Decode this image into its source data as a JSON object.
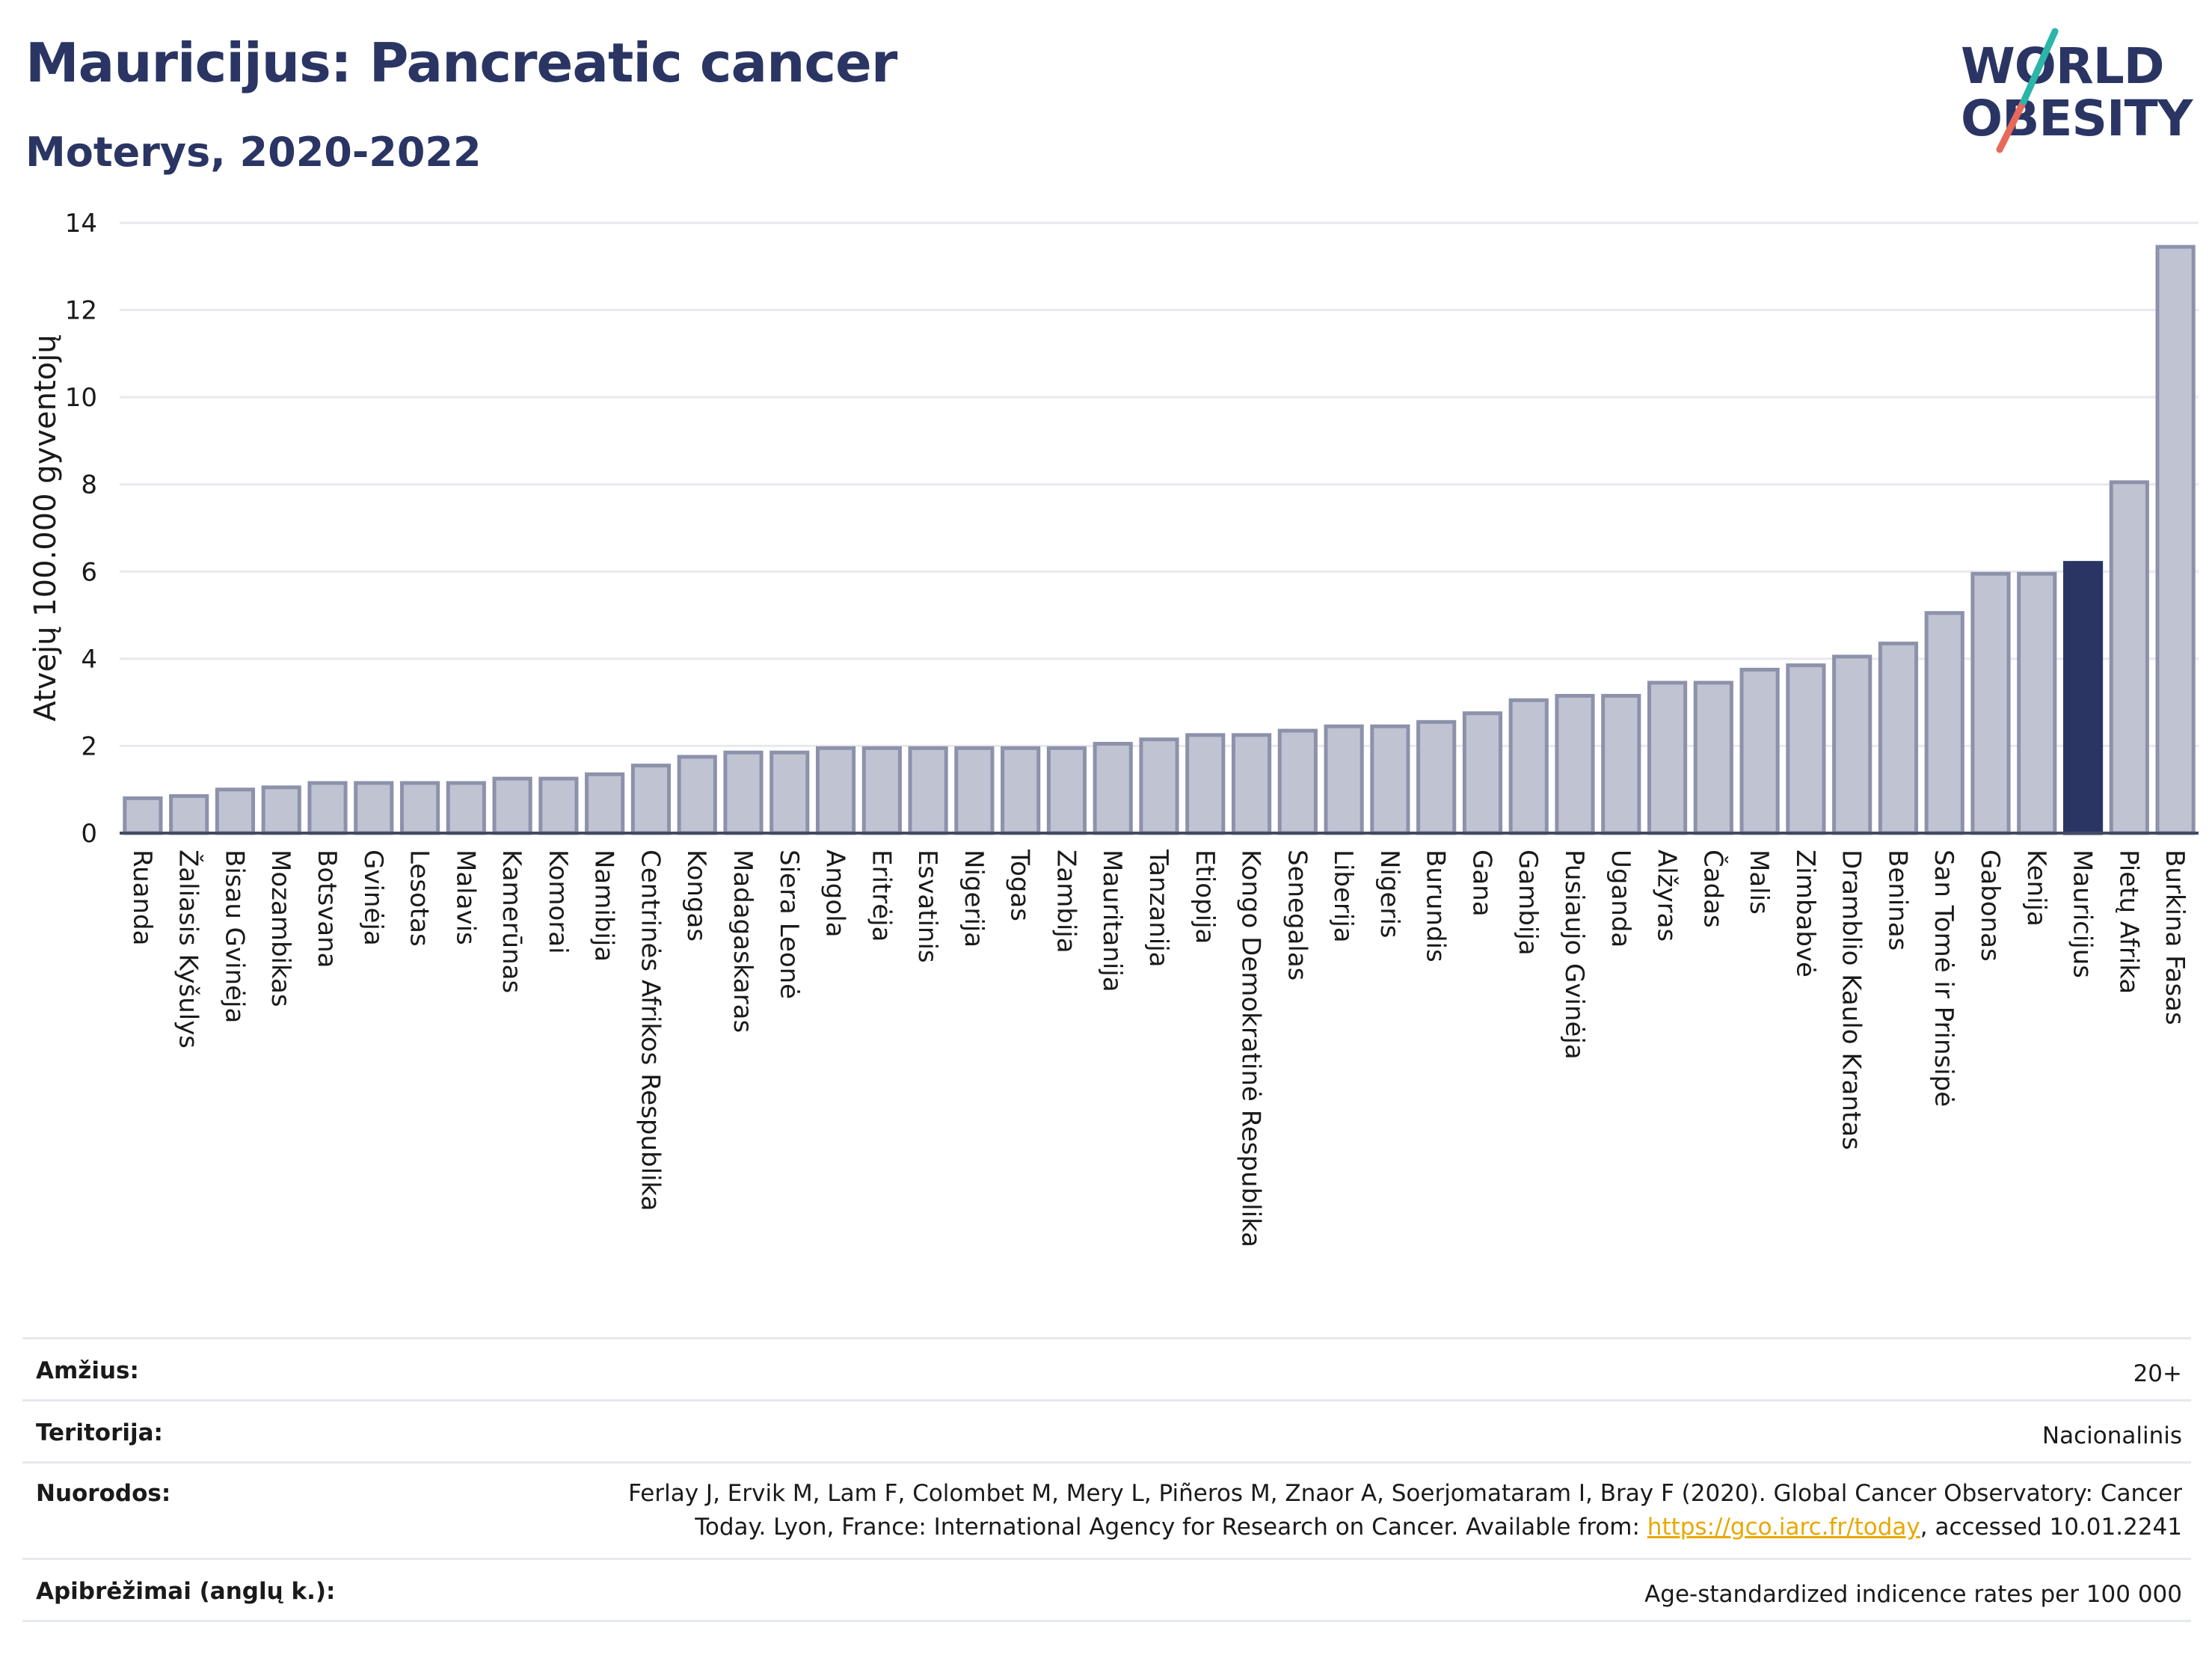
{
  "header": {
    "title": "Mauricijus: Pancreatic cancer",
    "subtitle": "Moterys, 2020-2022",
    "logo_line1": "WORLD",
    "logo_line2": "OBESITY"
  },
  "colors": {
    "bar": "#c0c3d2",
    "bar_edge": "#8d92ab",
    "highlight": "#2a3564",
    "title": "#2a3564",
    "grid": "#e8e8ee",
    "logo_slash_top": "#2cb5a8",
    "logo_slash_bottom": "#e8695a",
    "link": "#e8a800"
  },
  "chart_data": {
    "type": "bar",
    "ylabel": "Atvejų 100.000 gyventojų",
    "xlabel": "",
    "ylim": [
      0,
      14
    ],
    "yticks": [
      0,
      2,
      4,
      6,
      8,
      10,
      12,
      14
    ],
    "grid": true,
    "highlight": "Mauricijus",
    "categories": [
      "Ruanda",
      "Žaliasis Kyšulys",
      "Bisau Gvinėja",
      "Mozambikas",
      "Botsvana",
      "Gvinėja",
      "Lesotas",
      "Malavis",
      "Kamerūnas",
      "Komorai",
      "Namibija",
      "Centrinės Afrikos Respublika",
      "Kongas",
      "Madagaskaras",
      "Siera Leonė",
      "Angola",
      "Eritrėja",
      "Esvatinis",
      "Nigerija",
      "Togas",
      "Zambija",
      "Mauritanija",
      "Tanzanija",
      "Etiopija",
      "Kongo Demokratinė Respublika",
      "Senegalas",
      "Liberija",
      "Nigeris",
      "Burundis",
      "Gana",
      "Gambija",
      "Pusiaujo Gvinėja",
      "Uganda",
      "Alžyras",
      "Čadas",
      "Malis",
      "Zimbabvė",
      "Dramblio Kaulo Krantas",
      "Beninas",
      "San Tomė ir Prinsipė",
      "Gabonas",
      "Kenija",
      "Mauricijus",
      "Pietų Afrika",
      "Burkina Fasas"
    ],
    "values": [
      0.8,
      0.85,
      1.0,
      1.05,
      1.15,
      1.15,
      1.15,
      1.15,
      1.25,
      1.25,
      1.35,
      1.55,
      1.75,
      1.85,
      1.85,
      1.95,
      1.95,
      1.95,
      1.95,
      1.95,
      1.95,
      2.05,
      2.15,
      2.25,
      2.25,
      2.35,
      2.45,
      2.45,
      2.55,
      2.75,
      3.05,
      3.15,
      3.15,
      3.45,
      3.45,
      3.75,
      3.85,
      4.05,
      4.35,
      5.05,
      5.95,
      5.95,
      6.2,
      8.05,
      13.45
    ]
  },
  "footer": {
    "age_label": "Amžius:",
    "age_value": "20+",
    "territory_label": "Teritorija:",
    "territory_value": "Nacionalinis",
    "refs_label": "Nuorodos:",
    "refs_line1": "Ferlay J, Ervik M, Lam F, Colombet M, Mery L, Piñeros M, Znaor A, Soerjomataram I, Bray F (2020). Global Cancer Observatory: Cancer",
    "refs_line2_pre": "Today. Lyon, France: International Agency for Research on Cancer. Available from: ",
    "refs_link": "https://gco.iarc.fr/today",
    "refs_line2_post": ", accessed 10.01.2241",
    "defs_label": "Apibrėžimai (anglų k.):",
    "defs_value": "Age-standardized indicence rates per 100 000"
  }
}
